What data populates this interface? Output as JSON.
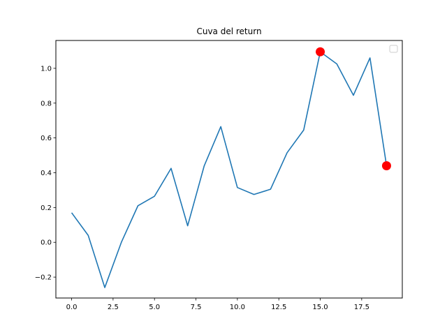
{
  "chart_data": {
    "type": "line",
    "title": "Cuva del return",
    "xlabel": "",
    "ylabel": "",
    "xlim": [
      -0.95,
      19.95
    ],
    "ylim": [
      -0.32,
      1.16
    ],
    "x_ticks": [
      0.0,
      2.5,
      5.0,
      7.5,
      10.0,
      12.5,
      15.0,
      17.5
    ],
    "x_tick_labels": [
      "0.0",
      "2.5",
      "5.0",
      "7.5",
      "10.0",
      "12.5",
      "15.0",
      "17.5"
    ],
    "y_ticks": [
      -0.2,
      0.0,
      0.2,
      0.4,
      0.6,
      0.8,
      1.0
    ],
    "y_tick_labels": [
      "−0.2",
      "0.0",
      "0.2",
      "0.4",
      "0.6",
      "0.8",
      "1.0"
    ],
    "grid": false,
    "legend": "top-right",
    "series": [
      {
        "x": [
          0,
          1,
          2,
          3,
          4,
          5,
          6,
          7,
          8,
          9,
          10,
          11,
          12,
          13,
          14,
          15,
          16,
          17,
          18,
          19
        ],
        "values": [
          0.17,
          0.04,
          -0.26,
          0.0,
          0.21,
          0.265,
          0.425,
          0.095,
          0.44,
          0.665,
          0.315,
          0.275,
          0.305,
          0.515,
          0.645,
          1.095,
          1.025,
          0.845,
          1.06,
          0.44
        ],
        "color": "#1f77b4"
      }
    ],
    "markers": [
      {
        "x": 15,
        "y": 1.095,
        "color": "#ff0000"
      },
      {
        "x": 19,
        "y": 0.44,
        "color": "#ff0000"
      }
    ]
  }
}
